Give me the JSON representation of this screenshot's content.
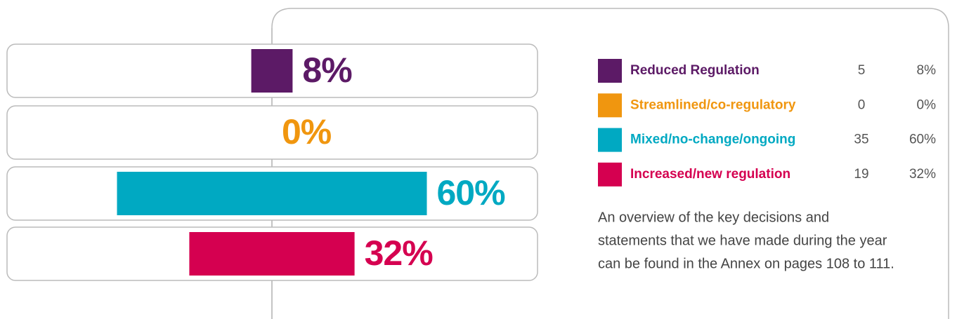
{
  "chart_data": {
    "type": "bar",
    "categories": [
      "Reduced Regulation",
      "Streamlined/co-regulatory",
      "Mixed/no-change/ongoing",
      "Increased/new regulation"
    ],
    "values": [
      8,
      0,
      60,
      32
    ],
    "value_labels": [
      "8%",
      "0%",
      "60%",
      "32%"
    ],
    "counts": [
      5,
      0,
      35,
      19
    ],
    "colors": [
      "#5c1a66",
      "#f0960f",
      "#00a9c2",
      "#d50050"
    ],
    "description": [
      "An overview of the key decisions and",
      "statements that we have made during the year",
      "can be found in the Annex on pages 108 to 111."
    ]
  }
}
